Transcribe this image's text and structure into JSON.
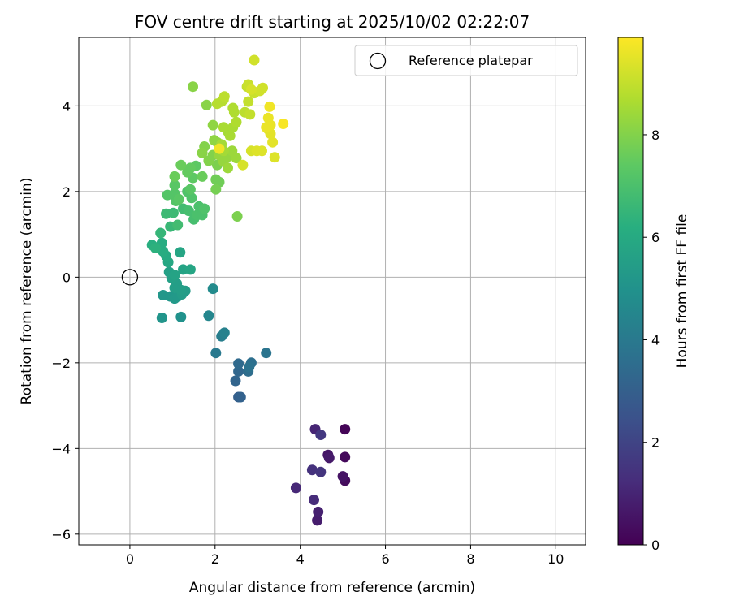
{
  "chart_data": {
    "type": "scatter",
    "title": "FOV centre drift starting at 2025/10/02 02:22:07",
    "xlabel": "Angular distance from reference (arcmin)",
    "ylabel": "Rotation from reference (arcmin)",
    "xlim": [
      -1.2,
      10.7
    ],
    "ylim": [
      -6.25,
      5.6
    ],
    "xticks": [
      0,
      2,
      4,
      6,
      8,
      10
    ],
    "yticks": [
      -6,
      -4,
      -2,
      0,
      2,
      4
    ],
    "xtick_labels": [
      "0",
      "2",
      "4",
      "6",
      "8",
      "10"
    ],
    "ytick_labels": [
      "−6",
      "−4",
      "−2",
      "0",
      "2",
      "4"
    ],
    "grid": true,
    "legend": {
      "position": "top-right",
      "entries": [
        "Reference platepar"
      ]
    },
    "reference_point": {
      "x": 0,
      "y": 0
    },
    "colorbar": {
      "label": "Hours from first FF file",
      "range": [
        0,
        9.9
      ],
      "ticks": [
        0,
        2,
        4,
        6,
        8
      ],
      "tick_labels": [
        "0",
        "2",
        "4",
        "6",
        "8"
      ],
      "colormap": "viridis"
    },
    "points": [
      {
        "x": 5.05,
        "y": -3.55,
        "h": 0.1
      },
      {
        "x": 5.05,
        "y": -4.2,
        "h": 0.2
      },
      {
        "x": 5.05,
        "y": -4.75,
        "h": 0.3
      },
      {
        "x": 5.0,
        "y": -4.65,
        "h": 0.5
      },
      {
        "x": 4.65,
        "y": -4.15,
        "h": 0.6
      },
      {
        "x": 4.68,
        "y": -4.22,
        "h": 0.7
      },
      {
        "x": 4.4,
        "y": -5.68,
        "h": 0.8
      },
      {
        "x": 4.42,
        "y": -5.48,
        "h": 0.9
      },
      {
        "x": 4.35,
        "y": -3.55,
        "h": 1.0
      },
      {
        "x": 3.9,
        "y": -4.92,
        "h": 1.1
      },
      {
        "x": 4.32,
        "y": -5.2,
        "h": 1.2
      },
      {
        "x": 4.28,
        "y": -4.5,
        "h": 1.4
      },
      {
        "x": 4.48,
        "y": -4.55,
        "h": 1.5
      },
      {
        "x": 4.48,
        "y": -3.68,
        "h": 1.6
      },
      {
        "x": 2.55,
        "y": -2.8,
        "h": 3.0
      },
      {
        "x": 2.6,
        "y": -2.8,
        "h": 3.1
      },
      {
        "x": 2.48,
        "y": -2.42,
        "h": 3.2
      },
      {
        "x": 2.55,
        "y": -2.2,
        "h": 3.3
      },
      {
        "x": 2.55,
        "y": -2.02,
        "h": 3.4
      },
      {
        "x": 2.78,
        "y": -2.2,
        "h": 3.5
      },
      {
        "x": 2.85,
        "y": -2.0,
        "h": 3.6
      },
      {
        "x": 2.8,
        "y": -2.1,
        "h": 3.7
      },
      {
        "x": 3.2,
        "y": -1.77,
        "h": 3.8
      },
      {
        "x": 2.02,
        "y": -1.77,
        "h": 4.0
      },
      {
        "x": 2.15,
        "y": -1.38,
        "h": 4.2
      },
      {
        "x": 2.22,
        "y": -1.3,
        "h": 4.3
      },
      {
        "x": 1.85,
        "y": -0.9,
        "h": 4.5
      },
      {
        "x": 1.95,
        "y": -0.27,
        "h": 4.7
      },
      {
        "x": 1.2,
        "y": -0.93,
        "h": 5.0
      },
      {
        "x": 0.75,
        "y": -0.95,
        "h": 5.1
      },
      {
        "x": 0.78,
        "y": -0.42,
        "h": 5.2
      },
      {
        "x": 0.95,
        "y": -0.45,
        "h": 5.2
      },
      {
        "x": 1.05,
        "y": -0.5,
        "h": 5.3
      },
      {
        "x": 1.12,
        "y": -0.45,
        "h": 5.3
      },
      {
        "x": 1.22,
        "y": -0.4,
        "h": 5.4
      },
      {
        "x": 1.3,
        "y": -0.32,
        "h": 5.4
      },
      {
        "x": 1.05,
        "y": -0.25,
        "h": 5.5
      },
      {
        "x": 1.1,
        "y": -0.15,
        "h": 5.5
      },
      {
        "x": 1.2,
        "y": -0.3,
        "h": 5.5
      },
      {
        "x": 0.98,
        "y": -0.02,
        "h": 5.6
      },
      {
        "x": 0.92,
        "y": 0.12,
        "h": 5.6
      },
      {
        "x": 1.05,
        "y": 0.05,
        "h": 5.7
      },
      {
        "x": 1.25,
        "y": 0.18,
        "h": 5.7
      },
      {
        "x": 1.42,
        "y": 0.18,
        "h": 5.8
      },
      {
        "x": 1.18,
        "y": 0.58,
        "h": 5.8
      },
      {
        "x": 0.9,
        "y": 0.35,
        "h": 5.9
      },
      {
        "x": 0.85,
        "y": 0.5,
        "h": 6.0
      },
      {
        "x": 0.78,
        "y": 0.6,
        "h": 6.1
      },
      {
        "x": 0.75,
        "y": 0.8,
        "h": 6.1
      },
      {
        "x": 0.52,
        "y": 0.75,
        "h": 6.2
      },
      {
        "x": 0.6,
        "y": 0.68,
        "h": 6.3
      },
      {
        "x": 0.72,
        "y": 1.03,
        "h": 6.5
      },
      {
        "x": 0.95,
        "y": 1.18,
        "h": 6.6
      },
      {
        "x": 0.85,
        "y": 1.48,
        "h": 6.7
      },
      {
        "x": 1.02,
        "y": 1.5,
        "h": 6.7
      },
      {
        "x": 1.12,
        "y": 1.22,
        "h": 6.8
      },
      {
        "x": 1.25,
        "y": 1.6,
        "h": 6.8
      },
      {
        "x": 1.38,
        "y": 1.55,
        "h": 6.9
      },
      {
        "x": 1.5,
        "y": 1.35,
        "h": 6.9
      },
      {
        "x": 1.58,
        "y": 1.45,
        "h": 7.0
      },
      {
        "x": 1.7,
        "y": 1.45,
        "h": 7.0
      },
      {
        "x": 1.62,
        "y": 1.65,
        "h": 7.0
      },
      {
        "x": 1.75,
        "y": 1.6,
        "h": 7.1
      },
      {
        "x": 1.45,
        "y": 1.85,
        "h": 7.1
      },
      {
        "x": 1.35,
        "y": 2.0,
        "h": 7.1
      },
      {
        "x": 1.08,
        "y": 1.78,
        "h": 7.2
      },
      {
        "x": 0.88,
        "y": 1.92,
        "h": 7.2
      },
      {
        "x": 1.05,
        "y": 1.95,
        "h": 7.2
      },
      {
        "x": 1.15,
        "y": 1.82,
        "h": 7.3
      },
      {
        "x": 1.05,
        "y": 2.15,
        "h": 7.3
      },
      {
        "x": 1.42,
        "y": 2.05,
        "h": 7.3
      },
      {
        "x": 1.55,
        "y": 2.6,
        "h": 7.4
      },
      {
        "x": 1.48,
        "y": 2.32,
        "h": 7.4
      },
      {
        "x": 1.35,
        "y": 2.45,
        "h": 7.5
      },
      {
        "x": 1.42,
        "y": 2.55,
        "h": 7.5
      },
      {
        "x": 1.7,
        "y": 2.35,
        "h": 7.6
      },
      {
        "x": 1.2,
        "y": 2.62,
        "h": 7.6
      },
      {
        "x": 1.05,
        "y": 2.35,
        "h": 7.6
      },
      {
        "x": 2.02,
        "y": 2.28,
        "h": 7.7
      },
      {
        "x": 2.1,
        "y": 2.22,
        "h": 7.7
      },
      {
        "x": 2.02,
        "y": 2.05,
        "h": 7.8
      },
      {
        "x": 2.52,
        "y": 1.42,
        "h": 7.9
      },
      {
        "x": 2.05,
        "y": 2.62,
        "h": 7.9
      },
      {
        "x": 1.85,
        "y": 2.72,
        "h": 8.0
      },
      {
        "x": 1.95,
        "y": 2.85,
        "h": 8.0
      },
      {
        "x": 1.75,
        "y": 3.05,
        "h": 8.0
      },
      {
        "x": 1.7,
        "y": 2.9,
        "h": 8.1
      },
      {
        "x": 1.48,
        "y": 4.45,
        "h": 8.1
      },
      {
        "x": 1.8,
        "y": 4.02,
        "h": 8.1
      },
      {
        "x": 1.95,
        "y": 3.55,
        "h": 8.2
      },
      {
        "x": 2.05,
        "y": 3.15,
        "h": 8.2
      },
      {
        "x": 1.98,
        "y": 3.2,
        "h": 8.2
      },
      {
        "x": 2.1,
        "y": 2.85,
        "h": 8.3
      },
      {
        "x": 2.2,
        "y": 2.7,
        "h": 8.3
      },
      {
        "x": 2.28,
        "y": 2.8,
        "h": 8.3
      },
      {
        "x": 2.4,
        "y": 2.95,
        "h": 8.4
      },
      {
        "x": 2.3,
        "y": 2.55,
        "h": 8.4
      },
      {
        "x": 2.5,
        "y": 2.78,
        "h": 8.4
      },
      {
        "x": 2.2,
        "y": 2.95,
        "h": 8.5
      },
      {
        "x": 2.15,
        "y": 3.1,
        "h": 8.5
      },
      {
        "x": 2.3,
        "y": 3.4,
        "h": 8.5
      },
      {
        "x": 2.2,
        "y": 3.5,
        "h": 8.6
      },
      {
        "x": 2.35,
        "y": 3.3,
        "h": 8.6
      },
      {
        "x": 2.42,
        "y": 3.5,
        "h": 8.6
      },
      {
        "x": 2.5,
        "y": 3.62,
        "h": 8.7
      },
      {
        "x": 2.45,
        "y": 3.85,
        "h": 8.7
      },
      {
        "x": 2.42,
        "y": 3.95,
        "h": 8.7
      },
      {
        "x": 2.05,
        "y": 4.05,
        "h": 8.8
      },
      {
        "x": 2.2,
        "y": 4.15,
        "h": 8.8
      },
      {
        "x": 2.15,
        "y": 4.1,
        "h": 8.8
      },
      {
        "x": 2.22,
        "y": 4.22,
        "h": 8.9
      },
      {
        "x": 2.7,
        "y": 3.85,
        "h": 8.9
      },
      {
        "x": 2.82,
        "y": 3.8,
        "h": 9.0
      },
      {
        "x": 2.78,
        "y": 4.1,
        "h": 9.0
      },
      {
        "x": 2.75,
        "y": 4.45,
        "h": 9.0
      },
      {
        "x": 2.78,
        "y": 4.5,
        "h": 9.1
      },
      {
        "x": 2.92,
        "y": 4.3,
        "h": 9.1
      },
      {
        "x": 3.05,
        "y": 4.35,
        "h": 9.2
      },
      {
        "x": 3.12,
        "y": 4.42,
        "h": 9.2
      },
      {
        "x": 2.92,
        "y": 5.07,
        "h": 9.2
      },
      {
        "x": 2.85,
        "y": 4.38,
        "h": 9.3
      },
      {
        "x": 2.65,
        "y": 2.62,
        "h": 9.3
      },
      {
        "x": 2.85,
        "y": 2.95,
        "h": 9.3
      },
      {
        "x": 2.98,
        "y": 2.95,
        "h": 9.4
      },
      {
        "x": 3.1,
        "y": 2.95,
        "h": 9.4
      },
      {
        "x": 3.4,
        "y": 2.8,
        "h": 9.4
      },
      {
        "x": 3.35,
        "y": 3.15,
        "h": 9.5
      },
      {
        "x": 3.25,
        "y": 3.45,
        "h": 9.5
      },
      {
        "x": 3.3,
        "y": 3.35,
        "h": 9.5
      },
      {
        "x": 3.2,
        "y": 3.5,
        "h": 9.6
      },
      {
        "x": 3.3,
        "y": 3.55,
        "h": 9.6
      },
      {
        "x": 3.25,
        "y": 3.72,
        "h": 9.6
      },
      {
        "x": 3.28,
        "y": 3.98,
        "h": 9.7
      },
      {
        "x": 3.6,
        "y": 3.58,
        "h": 9.8
      },
      {
        "x": 2.1,
        "y": 3.0,
        "h": 9.7
      }
    ]
  }
}
